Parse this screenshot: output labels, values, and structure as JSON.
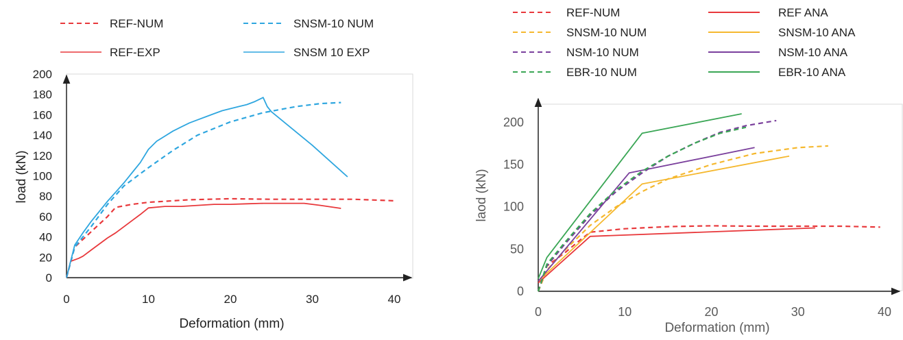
{
  "chart_data": [
    {
      "type": "line",
      "xlabel": "Deformation (mm)",
      "ylabel": "load (kN)",
      "xlim": [
        0,
        40
      ],
      "ylim": [
        0,
        200
      ],
      "xticks": [
        0,
        10,
        20,
        30,
        40
      ],
      "yticks": [
        0,
        20,
        40,
        60,
        80,
        100,
        120,
        140,
        160,
        180,
        200
      ],
      "grid": false,
      "legend_position": "top",
      "series": [
        {
          "name": "REF-NUM",
          "color": "#e8383b",
          "dash": true,
          "x": [
            0,
            1,
            3,
            5,
            6,
            8,
            10,
            15,
            20,
            25,
            30,
            35,
            40
          ],
          "y": [
            0,
            30,
            45,
            60,
            69,
            72,
            74,
            76.5,
            77.5,
            77,
            77,
            77,
            75.5
          ]
        },
        {
          "name": "SNSM-10 NUM",
          "color": "#2ea6df",
          "dash": true,
          "x": [
            0,
            1,
            3,
            5,
            7,
            10,
            13,
            16,
            20,
            24,
            28,
            31,
            33.5
          ],
          "y": [
            0,
            30,
            50,
            72,
            90,
            108,
            125,
            140,
            153,
            162,
            168,
            171,
            172
          ]
        },
        {
          "name": "REF-EXP",
          "color": "#e8383b",
          "dash": false,
          "x": [
            0,
            0.5,
            1.5,
            2,
            3,
            4,
            5,
            6,
            7,
            8,
            9,
            10,
            12,
            14,
            16,
            18,
            20,
            22,
            24,
            26,
            28,
            29,
            30,
            31,
            33.5
          ],
          "y": [
            0,
            16,
            19,
            21,
            27,
            33,
            39,
            44,
            50,
            56,
            62,
            68.5,
            70,
            70,
            71,
            72,
            72,
            72.5,
            73,
            73,
            73,
            73,
            72,
            71,
            68
          ]
        },
        {
          "name": "SNSM 10 EXP",
          "color": "#2ea6df",
          "dash": false,
          "x": [
            0,
            1,
            2,
            3,
            4,
            5,
            6,
            7,
            8,
            9,
            10,
            11,
            12,
            13,
            14,
            15,
            16,
            17,
            18,
            19,
            20,
            21,
            22,
            23,
            24,
            24.5,
            25,
            30,
            34.3
          ],
          "y": [
            0,
            32,
            44,
            55,
            65,
            75,
            84,
            93,
            103,
            113,
            126,
            134,
            139,
            144,
            148,
            152,
            155,
            158,
            161,
            164,
            166,
            168,
            170,
            173,
            177,
            168,
            163,
            130,
            99
          ]
        }
      ]
    },
    {
      "type": "line",
      "xlabel": "Deformation (mm)",
      "ylabel": "laod (kN)",
      "xlim": [
        0,
        40
      ],
      "ylim": [
        0,
        210
      ],
      "xticks": [
        0,
        10,
        20,
        30,
        40
      ],
      "yticks": [
        0,
        50,
        100,
        150,
        200
      ],
      "grid": false,
      "legend_position": "top",
      "series": [
        {
          "name": "REF-NUM",
          "color": "#e8383b",
          "dash": true,
          "x": [
            0,
            1,
            3,
            5,
            6,
            8,
            10,
            15,
            20,
            25,
            30,
            35,
            39.5
          ],
          "y": [
            0,
            30,
            45,
            62,
            70,
            72,
            74,
            76.5,
            77.5,
            77,
            77,
            77,
            76
          ]
        },
        {
          "name": "REF ANA",
          "color": "#e8383b",
          "dash": false,
          "x": [
            0,
            6,
            32
          ],
          "y": [
            10,
            65,
            75
          ]
        },
        {
          "name": "SNSM-10 NUM",
          "color": "#f5b82e",
          "dash": true,
          "x": [
            0,
            1,
            3,
            6,
            9,
            12,
            15,
            20,
            25,
            30,
            33.5
          ],
          "y": [
            0,
            25,
            48,
            78,
            100,
            118,
            133,
            150,
            163,
            170,
            172
          ]
        },
        {
          "name": "SNSM-10 ANA",
          "color": "#f5b82e",
          "dash": false,
          "x": [
            0,
            12,
            29
          ],
          "y": [
            12,
            127,
            160
          ]
        },
        {
          "name": "NSM-10 NUM",
          "color": "#7a3f9c",
          "dash": true,
          "x": [
            0,
            1,
            3,
            6,
            9,
            12,
            15,
            18,
            21,
            24,
            27.5
          ],
          "y": [
            0,
            30,
            55,
            90,
            118,
            140,
            160,
            175,
            188,
            196,
            202
          ]
        },
        {
          "name": "NSM-10 ANA",
          "color": "#7a3f9c",
          "dash": false,
          "x": [
            0,
            10.5,
            25
          ],
          "y": [
            12,
            140,
            170
          ]
        },
        {
          "name": "EBR-10 NUM",
          "color": "#3aa655",
          "dash": true,
          "x": [
            0,
            1,
            3,
            6,
            9,
            12,
            15,
            18,
            21,
            24
          ],
          "y": [
            0,
            32,
            57,
            92,
            120,
            142,
            160,
            175,
            187,
            194
          ]
        },
        {
          "name": "EBR-10 ANA",
          "color": "#3aa655",
          "dash": false,
          "x": [
            0,
            1,
            12,
            23.5
          ],
          "y": [
            15,
            40,
            187,
            210
          ]
        }
      ]
    }
  ]
}
